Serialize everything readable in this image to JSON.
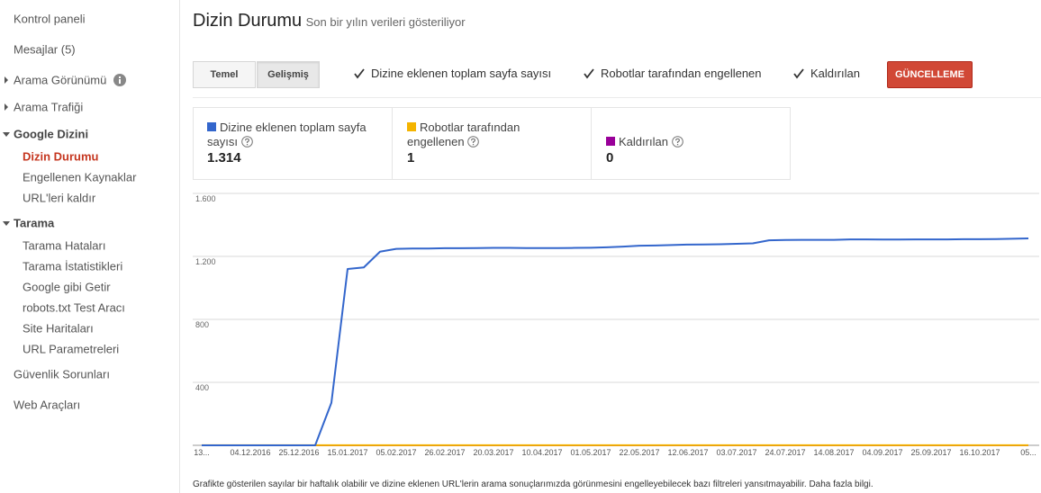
{
  "sidebar": {
    "items": [
      "Kontrol paneli",
      "Mesajlar (5)",
      "Arama Görünümü",
      "Arama Trafiği",
      "Google Dizini",
      "Dizin Durumu",
      "Engellenen Kaynaklar",
      "URL'leri kaldır",
      "Tarama",
      "Tarama Hataları",
      "Tarama İstatistikleri",
      "Google gibi Getir",
      "robots.txt Test Aracı",
      "Site Haritaları",
      "URL Parametreleri",
      "Güvenlik Sorunları",
      "Web Araçları"
    ]
  },
  "header": {
    "title": "Dizin Durumu",
    "subtitle": "Son bir yılın verileri gösteriliyor"
  },
  "tabs": [
    "Temel",
    "Gelişmiş"
  ],
  "button": "GÜNCELLEME",
  "summary": {
    "values": [
      "1.314",
      "1",
      "0"
    ]
  },
  "footer": {
    "text": "Grafikte gösterilen sayılar bir haftalık olabilir ve dizine eklenen URL'lerin arama sonuçlarımızda görünmesini engelleyebilecek bazı filtreleri yansıtmayabilir.",
    "link": "Daha fazla bilgi."
  },
  "chart_data": {
    "type": "line",
    "categories": [
      "13...",
      null,
      null,
      "04.12.2016",
      null,
      null,
      "25.12.2016",
      null,
      null,
      "15.01.2017",
      null,
      null,
      "05.02.2017",
      null,
      null,
      "26.02.2017",
      null,
      null,
      "20.03.2017",
      null,
      null,
      "10.04.2017",
      null,
      null,
      "01.05.2017",
      null,
      null,
      "22.05.2017",
      null,
      null,
      "12.06.2017",
      null,
      null,
      "03.07.2017",
      null,
      null,
      "24.07.2017",
      null,
      null,
      "14.08.2017",
      null,
      null,
      "04.09.2017",
      null,
      null,
      "25.09.2017",
      null,
      null,
      "16.10.2017",
      null,
      null,
      "05..."
    ],
    "series": [
      {
        "name": "Dizine eklenen toplam sayfa sayısı",
        "color": "#3366cc",
        "values": [
          0,
          0,
          0,
          0,
          0,
          0,
          0,
          0,
          270,
          1120,
          1130,
          1230,
          1248,
          1250,
          1250,
          1252,
          1252,
          1253,
          1254,
          1254,
          1253,
          1253,
          1253,
          1254,
          1255,
          1258,
          1262,
          1268,
          1269,
          1272,
          1275,
          1276,
          1277,
          1280,
          1283,
          1302,
          1304,
          1305,
          1305,
          1305,
          1308,
          1308,
          1307,
          1307,
          1308,
          1308,
          1308,
          1309,
          1309,
          1310,
          1312,
          1314
        ]
      },
      {
        "name": "Robotlar tarafından engellenen",
        "color": "#f4b400",
        "values": [
          1,
          1,
          1,
          1,
          1,
          1,
          1,
          1,
          1,
          1,
          1,
          1,
          1,
          1,
          1,
          1,
          1,
          1,
          1,
          1,
          1,
          1,
          1,
          1,
          1,
          1,
          1,
          1,
          1,
          1,
          1,
          1,
          1,
          1,
          1,
          1,
          1,
          1,
          1,
          1,
          1,
          1,
          1,
          1,
          1,
          1,
          1,
          1,
          1,
          1,
          1,
          1
        ]
      },
      {
        "name": "Kaldırılan",
        "color": "#990099",
        "values": [
          0,
          0,
          0,
          0,
          0,
          0,
          0,
          0,
          0,
          0,
          0,
          0,
          0,
          0,
          0,
          0,
          0,
          0,
          0,
          0,
          0,
          0,
          0,
          0,
          0,
          0,
          0,
          0,
          0,
          0,
          0,
          0,
          0,
          0,
          0,
          0,
          0,
          0,
          0,
          0,
          0,
          0,
          0,
          0,
          0,
          0,
          0,
          0,
          0,
          0,
          0,
          0
        ]
      }
    ],
    "ylim": [
      0,
      1600
    ],
    "yticks": [
      {
        "value": 1600,
        "label": "1.600"
      },
      {
        "value": 1200,
        "label": "1.200"
      },
      800,
      400
    ],
    "grid": true
  }
}
